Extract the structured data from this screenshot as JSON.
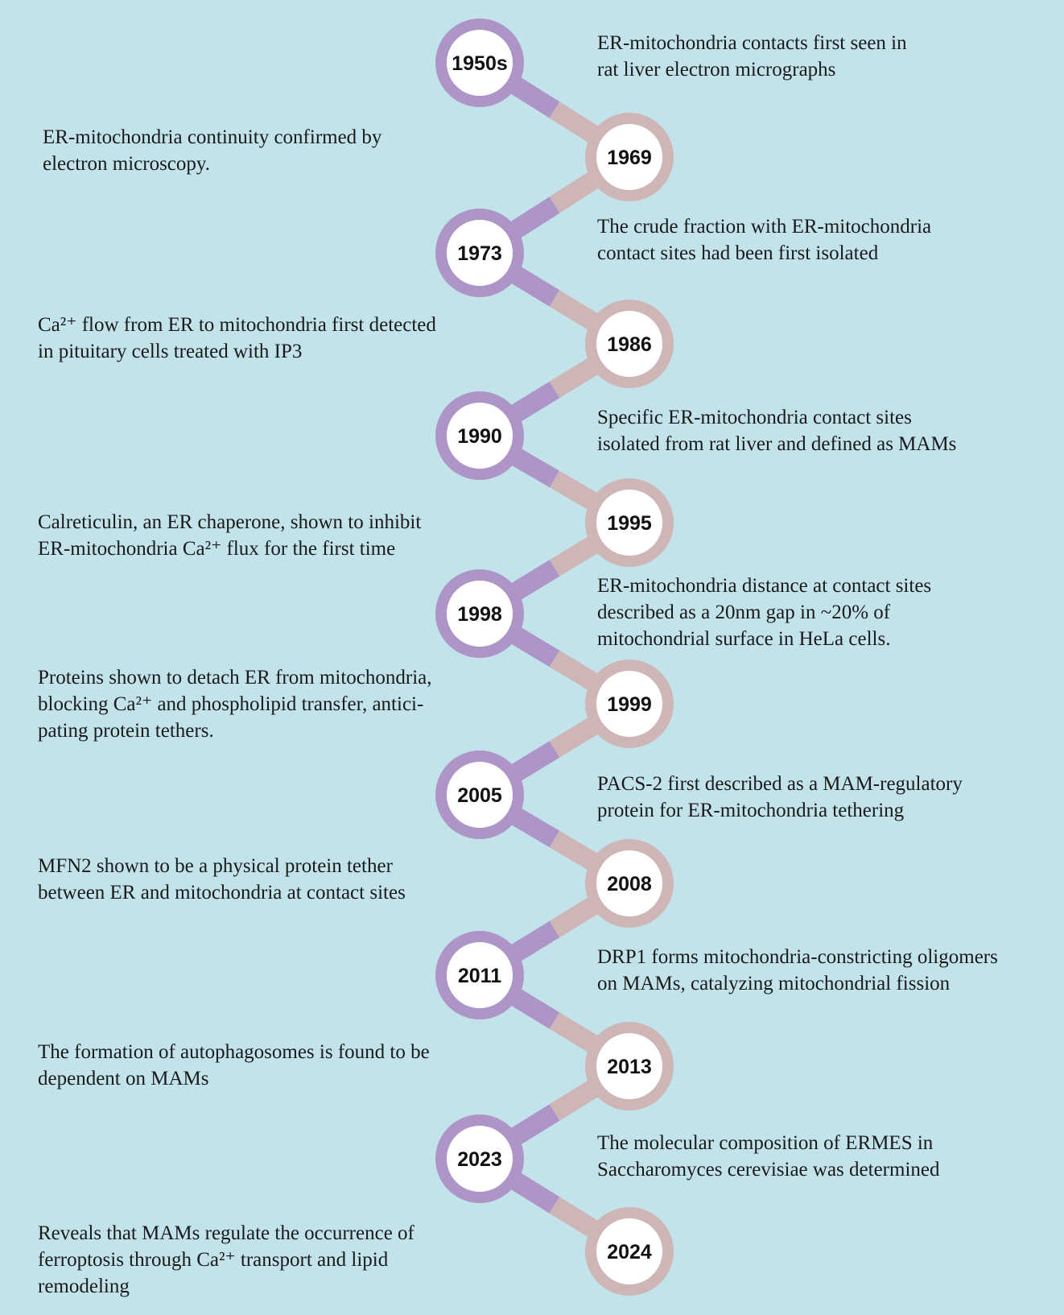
{
  "colors": {
    "background": "#c3e3eb",
    "left_node": "#ad96c7",
    "right_node": "#cfb6b6",
    "node_fill": "#ffffff"
  },
  "events": [
    {
      "year": "1950s",
      "side": "left",
      "text": "ER-mitochondria contacts first seen in\nrat liver electron micrographs"
    },
    {
      "year": "1969",
      "side": "right",
      "text": "ER-mitochondria continuity confirmed by\nelectron microscopy."
    },
    {
      "year": "1973",
      "side": "left",
      "text": "The crude fraction with ER-mitochondria\ncontact sites had been first isolated"
    },
    {
      "year": "1986",
      "side": "right",
      "text": " Ca²⁺ flow from ER to mitochondria first detected\nin pituitary cells treated with IP3"
    },
    {
      "year": "1990",
      "side": "left",
      "text": "Specific ER-mitochondria contact sites\nisolated from rat liver and defined as MAMs"
    },
    {
      "year": "1995",
      "side": "right",
      "text": "Calreticulin, an ER chaperone, shown to inhibit\nER-mitochondria Ca²⁺ flux for the first time"
    },
    {
      "year": "1998",
      "side": "left",
      "text": "ER-mitochondria distance at contact sites\ndescribed as a 20nm gap in ~20% of\nmitochondrial surface in HeLa cells."
    },
    {
      "year": "1999",
      "side": "right",
      "text": "Proteins shown to detach ER from mitochondria,\nblocking Ca²⁺ and phospholipid transfer, antici-\npating protein tethers."
    },
    {
      "year": "2005",
      "side": "left",
      "text": "PACS-2 first described as a MAM-regulatory\nprotein for ER-mitochondria tethering"
    },
    {
      "year": "2008",
      "side": "right",
      "text": " MFN2 shown to be a physical protein tether\nbetween ER and mitochondria at contact sites"
    },
    {
      "year": "2011",
      "side": "left",
      "text": "DRP1 forms mitochondria-constricting oligomers\non MAMs, catalyzing mitochondrial fission"
    },
    {
      "year": "2013",
      "side": "right",
      "text": "The formation of autophagosomes is found to be\ndependent on MAMs"
    },
    {
      "year": "2023",
      "side": "left",
      "text": "The molecular composition of ERMES in\nSaccharomyces cerevisiae was determined"
    },
    {
      "year": "2024",
      "side": "right",
      "text": "Reveals that MAMs regulate the occurrence of\nferroptosis through Ca²⁺ transport and lipid\nremodeling"
    }
  ]
}
